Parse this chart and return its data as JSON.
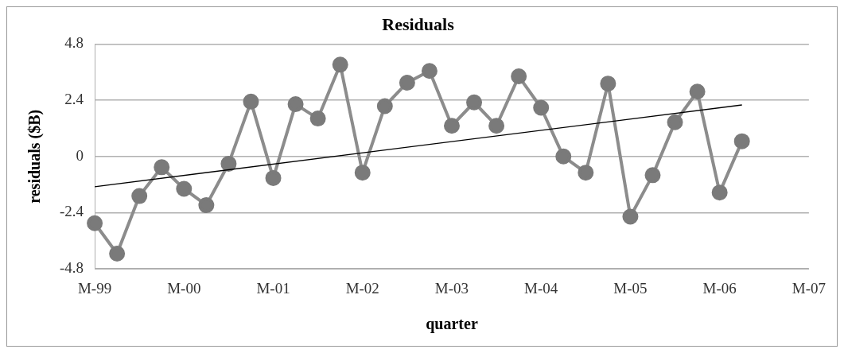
{
  "chart_data": {
    "type": "line",
    "title": "Residuals",
    "xlabel": "quarter",
    "ylabel": "residuals ($B)",
    "categories": [
      "M-99",
      null,
      null,
      null,
      "M-00",
      null,
      null,
      null,
      "M-01",
      null,
      null,
      null,
      "M-02",
      null,
      null,
      null,
      "M-03",
      null,
      null,
      null,
      "M-04",
      null,
      null,
      null,
      "M-05",
      null,
      null,
      null,
      "M-06",
      null,
      null,
      null,
      "M-07"
    ],
    "series": [
      {
        "color": "#8c8c8c",
        "marker": "circle",
        "values": [
          -2.85,
          -4.15,
          -1.69,
          -0.46,
          -1.38,
          -2.08,
          -0.31,
          2.34,
          -0.92,
          2.23,
          1.62,
          3.92,
          -0.69,
          2.15,
          3.15,
          3.65,
          1.31,
          2.31,
          1.31,
          3.42,
          2.08,
          0,
          -0.69,
          3.11,
          -2.57,
          -0.8,
          1.46,
          2.77,
          -1.54,
          0.65,
          null,
          null,
          null
        ]
      },
      {
        "color": "#000000",
        "marker": "none",
        "values": [
          -1.29,
          null,
          null,
          null,
          null,
          null,
          null,
          null,
          null,
          null,
          null,
          null,
          null,
          null,
          null,
          null,
          null,
          null,
          null,
          null,
          null,
          null,
          null,
          null,
          null,
          null,
          null,
          null,
          null,
          2.2,
          null,
          null,
          null
        ]
      }
    ],
    "ylim": [
      -4.8,
      4.8
    ],
    "yticks": [
      -4.8,
      -2.4,
      0,
      2.4,
      4.8
    ],
    "grid": "y",
    "legend": false,
    "line_style": "solid"
  }
}
